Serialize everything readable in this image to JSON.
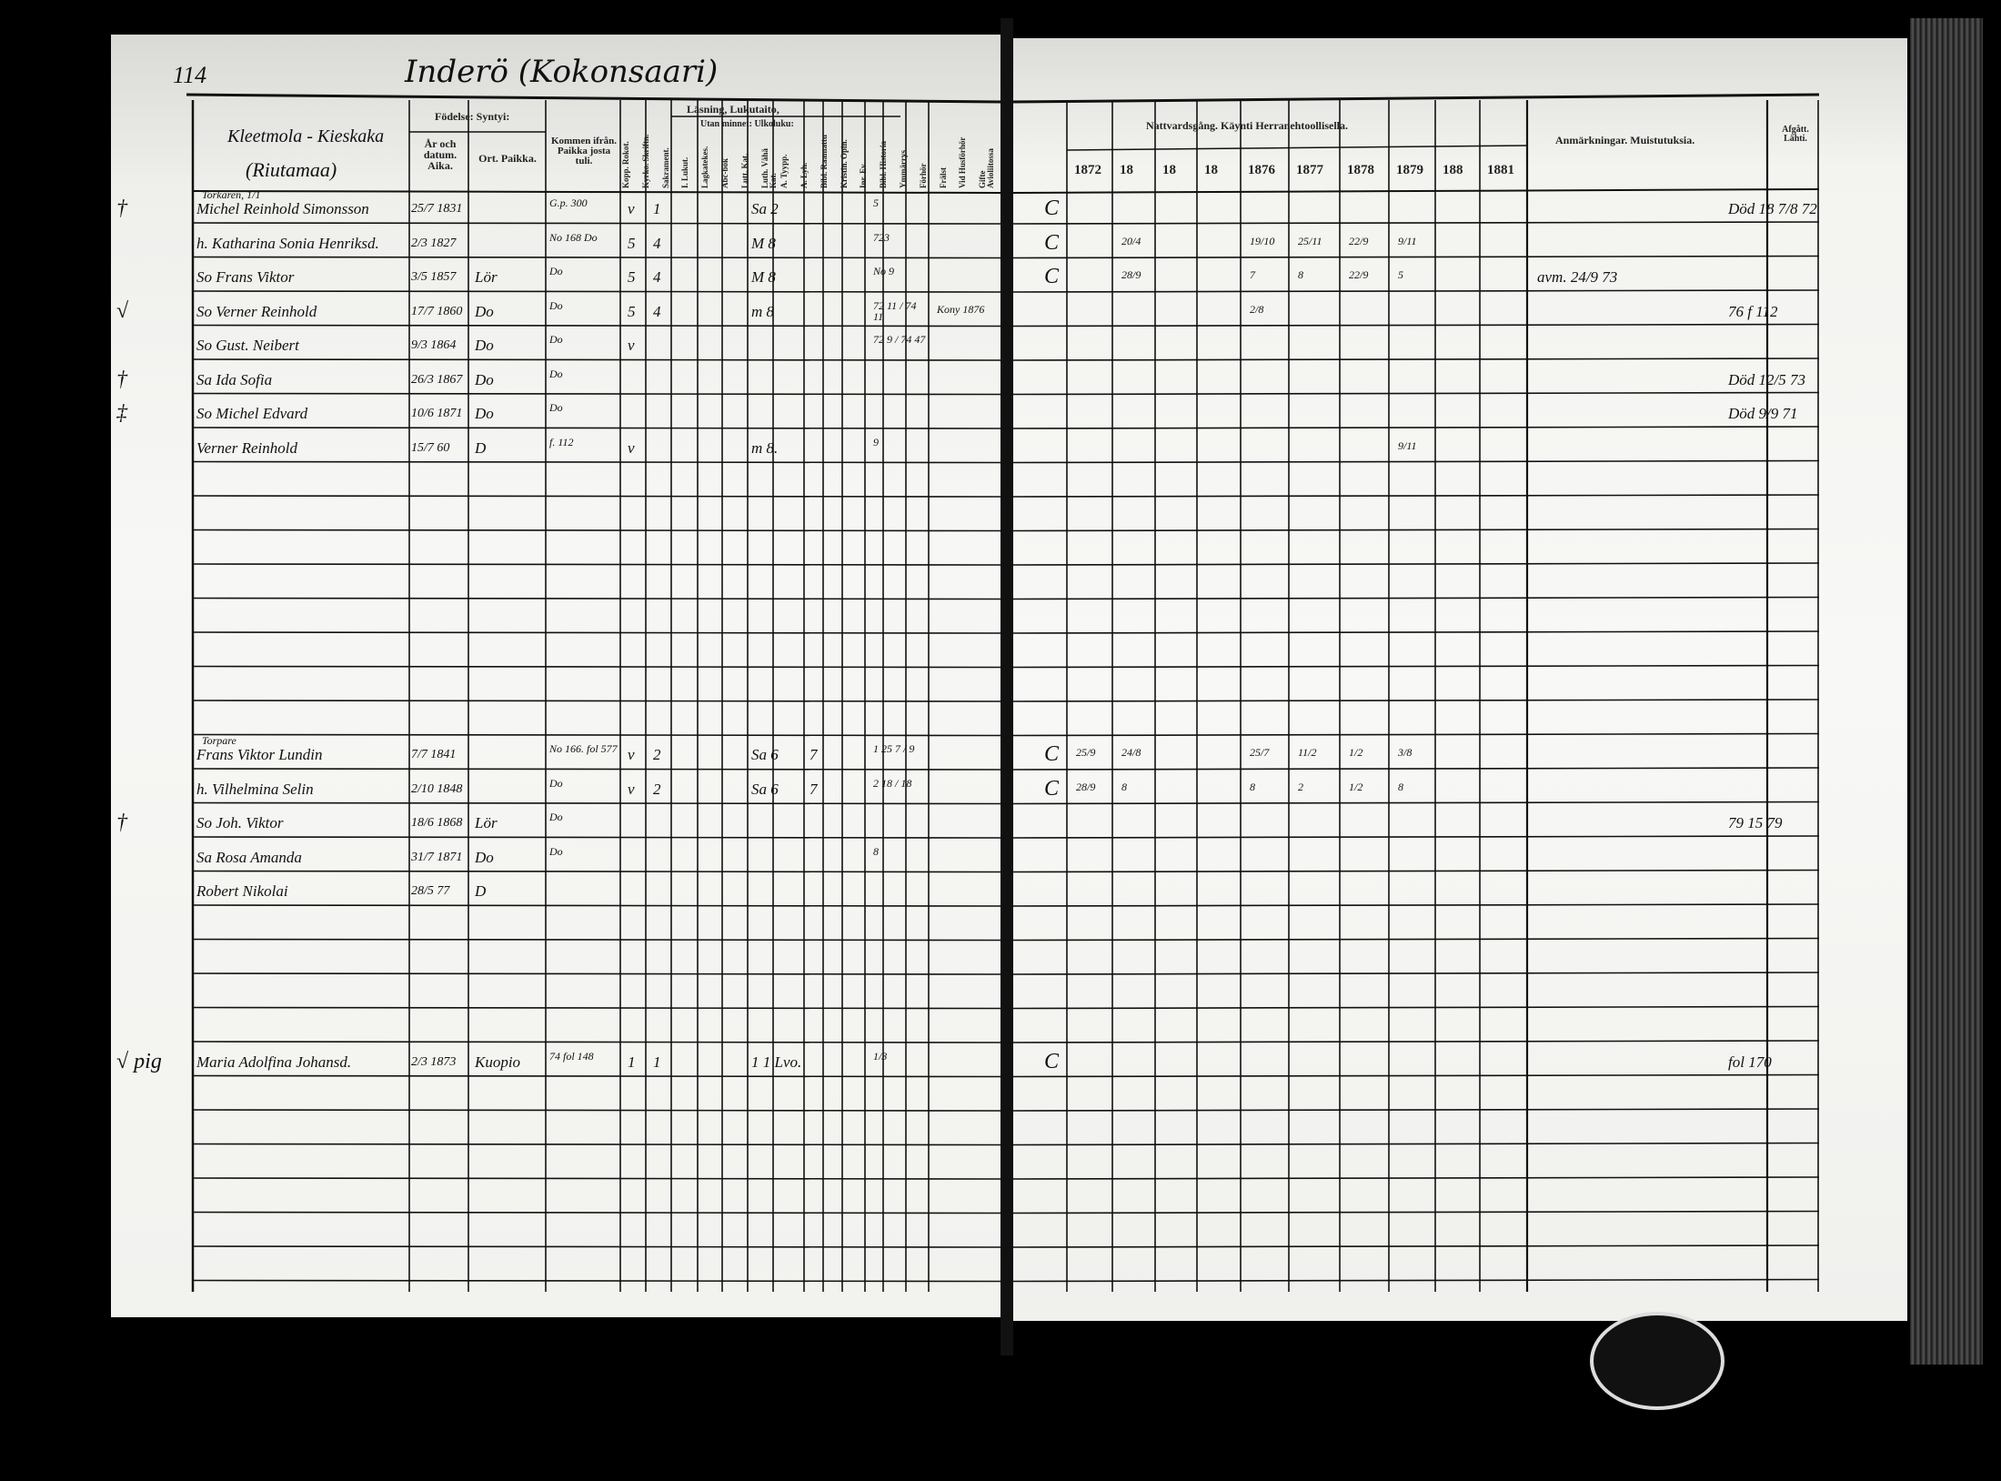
{
  "page_number": "114",
  "title": "Inderö (Kokonsaari)",
  "left_header": {
    "household": "Kleetmola - Kieskaka",
    "household_sub": "(Riutamaa)",
    "birth_group": "Födelse: Syntyi:",
    "birth_date": "År och datum. Aika.",
    "birth_place": "Ort. Paikka.",
    "came_from": "Kommen ifrån. Paikka josta tuli.",
    "reading_group": "Läsning, Lukutaito,",
    "memory_group": "Utan minnet: Ulkoluku:",
    "vertical_headers": [
      "Kopp. Rokot.",
      "Kyrko. Skriftn.",
      "Sakrament.",
      "I. Lukut.",
      "Lagkatekes.",
      "Abc-bok",
      "Lutt. Kat.",
      "Luth. Vähä Kat.",
      "A. Tyypp.",
      "A. Lyh.",
      "Bibl. Raamattu",
      "Kristin. Opin.",
      "Inr. Ev.",
      "Bibl. Historia",
      "Ymmärrys",
      "Förhör",
      "Frälst",
      "Vid Husförhör",
      "Gifte Avioliitossa"
    ]
  },
  "right_header": {
    "communion_group": "Nattvardsgång. Käynti Herranehtoollisella.",
    "years": [
      "1872",
      "18",
      "18",
      "18",
      "1876",
      "1877",
      "1878",
      "1879",
      "188",
      "1881"
    ],
    "remarks": "Anmärkningar. Muistutuksia.",
    "departed": "Afgått. Lähti."
  },
  "rows": [
    {
      "line": 0,
      "mark": "†",
      "note": "Torkaren, 1/1",
      "name": "Michel Reinhold Simonsson",
      "date": "25/7 1831",
      "place": "",
      "from": "G.p. 300",
      "r1": "v",
      "r2": "1",
      "skr": "Sa 2",
      "n": "",
      "fl": "5",
      "c": "C",
      "years": [
        "",
        "",
        "",
        "",
        "",
        "",
        "",
        "",
        "",
        ""
      ],
      "remark": "",
      "departed": "Död 18 7/8 72"
    },
    {
      "line": 1,
      "mark": "",
      "note": "",
      "name": "h. Katharina Sonia Henriksd.",
      "date": "2/3 1827",
      "place": "",
      "from": "No 168 Do",
      "r1": "5",
      "r2": "4",
      "skr": "M 8",
      "n": "",
      "fl": "723",
      "c": "C",
      "years": [
        "",
        "20/4",
        "",
        "",
        "19/10",
        "25/11",
        "22/9",
        "9/11",
        "",
        ""
      ],
      "remark": "",
      "departed": ""
    },
    {
      "line": 2,
      "mark": "",
      "note": "",
      "name": "So Frans Viktor",
      "date": "3/5 1857",
      "place": "Lör",
      "from": "Do",
      "r1": "5",
      "r2": "4",
      "skr": "M 8",
      "n": "",
      "fl": "No 9",
      "c": "C",
      "years": [
        "",
        "28/9",
        "",
        "",
        "7",
        "8",
        "22/9",
        "5",
        "",
        ""
      ],
      "remark": "avm. 24/9 73",
      "departed": ""
    },
    {
      "line": 3,
      "mark": "√",
      "note": "",
      "name": "So Verner Reinhold",
      "date": "17/7 1860",
      "place": "Do",
      "from": "Do",
      "r1": "5",
      "r2": "4",
      "skr": "m 8",
      "n": "",
      "fl": "72 11 / 74 11",
      "flyttat": "Kony 1876",
      "c": "",
      "years": [
        "",
        "",
        "",
        "",
        "2/8",
        "",
        "",
        "",
        "",
        ""
      ],
      "remark": "",
      "departed": "76 f 112"
    },
    {
      "line": 4,
      "mark": "",
      "note": "",
      "name": "So Gust. Neibert",
      "date": "9/3 1864",
      "place": "Do",
      "from": "Do",
      "r1": "v",
      "r2": "",
      "skr": "",
      "n": "",
      "fl": "72 9 / 74 47",
      "c": "",
      "years": [
        "",
        "",
        "",
        "",
        "",
        "",
        "",
        "",
        "",
        ""
      ],
      "remark": "",
      "departed": ""
    },
    {
      "line": 5,
      "mark": "†",
      "note": "",
      "name": "Sa Ida Sofia",
      "date": "26/3 1867",
      "place": "Do",
      "from": "Do",
      "r1": "",
      "r2": "",
      "skr": "",
      "n": "",
      "fl": "",
      "c": "",
      "years": [
        "",
        "",
        "",
        "",
        "",
        "",
        "",
        "",
        "",
        ""
      ],
      "remark": "",
      "departed": "Död 12/5 73"
    },
    {
      "line": 6,
      "mark": "‡",
      "note": "",
      "name": "So Michel Edvard",
      "date": "10/6 1871",
      "place": "Do",
      "from": "Do",
      "r1": "",
      "r2": "",
      "skr": "",
      "n": "",
      "fl": "",
      "c": "",
      "years": [
        "",
        "",
        "",
        "",
        "",
        "",
        "",
        "",
        "",
        ""
      ],
      "remark": "",
      "departed": "Död 9/9 71"
    },
    {
      "line": 7,
      "mark": "",
      "note": "",
      "name": "Verner Reinhold",
      "date": "15/7 60",
      "place": "D",
      "from": "f. 112",
      "r1": "v",
      "r2": "",
      "skr": "m 8.",
      "n": "",
      "fl": "9",
      "c": "",
      "years": [
        "",
        "",
        "",
        "",
        "",
        "",
        "",
        "9/11",
        "",
        ""
      ],
      "remark": "",
      "departed": ""
    },
    {
      "line": 16,
      "mark": "",
      "note": "Torpare",
      "name": "Frans Viktor Lundin",
      "date": "7/7 1841",
      "place": "",
      "from": "No 166. fol 577",
      "r1": "v",
      "r2": "2",
      "skr": "Sa 6",
      "n": "7",
      "fl": "1  25 7 / 9",
      "c": "C",
      "years": [
        "25/9",
        "24/8",
        "",
        "",
        "25/7",
        "11/2",
        "1/2",
        "3/8",
        "",
        ""
      ],
      "remark": "",
      "departed": ""
    },
    {
      "line": 17,
      "mark": "",
      "note": "",
      "name": "h. Vilhelmina Selin",
      "date": "2/10 1848",
      "place": "",
      "from": "Do",
      "r1": "v",
      "r2": "2",
      "skr": "Sa 6",
      "n": "7",
      "fl": "2 18 / 18",
      "c": "C",
      "years": [
        "28/9",
        "8",
        "",
        "",
        "8",
        "2",
        "1/2",
        "8",
        "",
        ""
      ],
      "remark": "",
      "departed": ""
    },
    {
      "line": 18,
      "mark": "†",
      "note": "",
      "name": "So Joh. Viktor",
      "date": "18/6 1868",
      "place": "Lör",
      "from": "Do",
      "r1": "",
      "r2": "",
      "skr": "",
      "n": "",
      "fl": "",
      "c": "",
      "years": [
        "",
        "",
        "",
        "",
        "",
        "",
        "",
        "",
        "",
        ""
      ],
      "remark": "",
      "departed": "79 15 79"
    },
    {
      "line": 19,
      "mark": "",
      "note": "",
      "name": "Sa Rosa Amanda",
      "date": "31/7 1871",
      "place": "Do",
      "from": "Do",
      "r1": "",
      "r2": "",
      "skr": "",
      "n": "",
      "fl": "8",
      "c": "",
      "years": [
        "",
        "",
        "",
        "",
        "",
        "",
        "",
        "",
        "",
        ""
      ],
      "remark": "",
      "departed": ""
    },
    {
      "line": 20,
      "mark": "",
      "note": "",
      "name": "Robert Nikolai",
      "date": "28/5 77",
      "place": "D",
      "from": "",
      "r1": "",
      "r2": "",
      "skr": "",
      "n": "",
      "fl": "",
      "c": "",
      "years": [
        "",
        "",
        "",
        "",
        "",
        "",
        "",
        "",
        "",
        ""
      ],
      "remark": "",
      "departed": ""
    },
    {
      "line": 25,
      "mark": "√ pig",
      "note": "",
      "name": "Maria Adolfina Johansd.",
      "date": "2/3 1873",
      "place": "Kuopio",
      "from": "74 fol 148",
      "r1": "1",
      "r2": "1",
      "skr": "1  1  Lvo.",
      "n": "",
      "fl": "1/3",
      "c": "C",
      "years": [
        "",
        "",
        "",
        "",
        "",
        "",
        "",
        "",
        "",
        ""
      ],
      "remark": "",
      "departed": "fol 170"
    }
  ],
  "colors": {
    "ink": "#111111",
    "paper": "#f4f4f2",
    "background": "#000000"
  }
}
